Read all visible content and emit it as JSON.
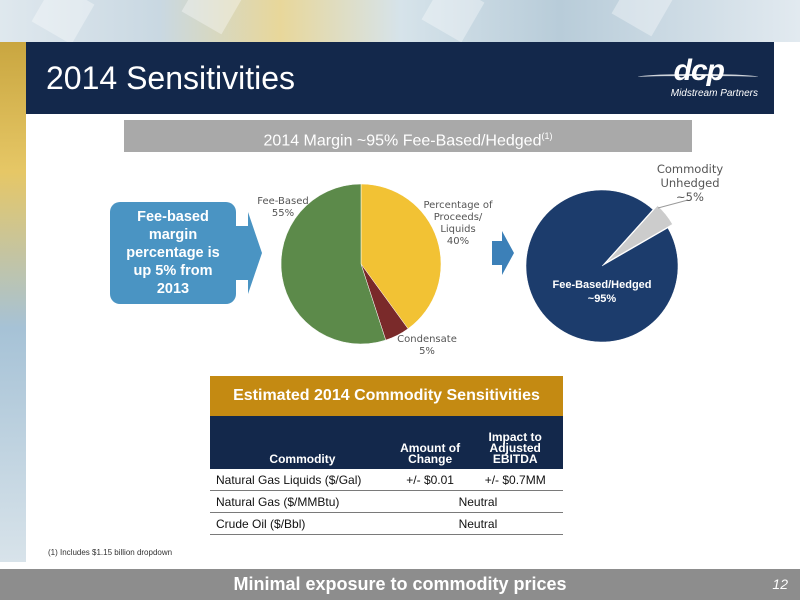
{
  "header": {
    "title": "2014 Sensitivities",
    "logo_text": "dcp",
    "logo_subtext": "Midstream Partners"
  },
  "subtitle": {
    "text": "2014 Margin ~95% Fee-Based/Hedged",
    "footnote_ref": "(1)"
  },
  "callout": {
    "text": "Fee-based margin percentage is up 5% from 2013"
  },
  "chart_data": [
    {
      "type": "pie",
      "slices": [
        {
          "label": "Percentage of Proceeds/ Liquids",
          "percent_label": "40%",
          "value": 40,
          "color": "#f2c234"
        },
        {
          "label": "Condensate",
          "percent_label": "5%",
          "value": 5,
          "color": "#7a2a2a"
        },
        {
          "label": "Fee-Based",
          "percent_label": "55%",
          "value": 55,
          "color": "#5c8a4a"
        }
      ]
    },
    {
      "type": "pie",
      "slices": [
        {
          "label": "Fee-Based/Hedged",
          "percent_label": "~95%",
          "value": 95,
          "color": "#1c3c6c"
        },
        {
          "label": "Commodity Unhedged",
          "percent_label": "~5%",
          "value": 5,
          "color": "#cccccc"
        }
      ]
    }
  ],
  "table": {
    "title": "Estimated 2014 Commodity Sensitivities",
    "headers": [
      "Commodity",
      "Amount of Change",
      "Impact to Adjusted EBITDA"
    ],
    "rows": [
      {
        "commodity": "Natural Gas Liquids ($/Gal)",
        "amount": "+/- $0.01",
        "impact": "+/- $0.7MM"
      },
      {
        "commodity": "Natural Gas ($/MMBtu)",
        "merged": "Neutral"
      },
      {
        "commodity": "Crude Oil ($/Bbl)",
        "merged": "Neutral"
      }
    ]
  },
  "footnote": "(1) Includes $1.15 billion dropdown",
  "footer": {
    "text": "Minimal exposure to commodity prices",
    "page_number": "12"
  },
  "colors": {
    "navy": "#13284b",
    "gold": "#c48a12",
    "callout_blue": "#4a94c3",
    "arrow_blue": "#4a94c3",
    "footer_gray": "#8d8d8d"
  }
}
